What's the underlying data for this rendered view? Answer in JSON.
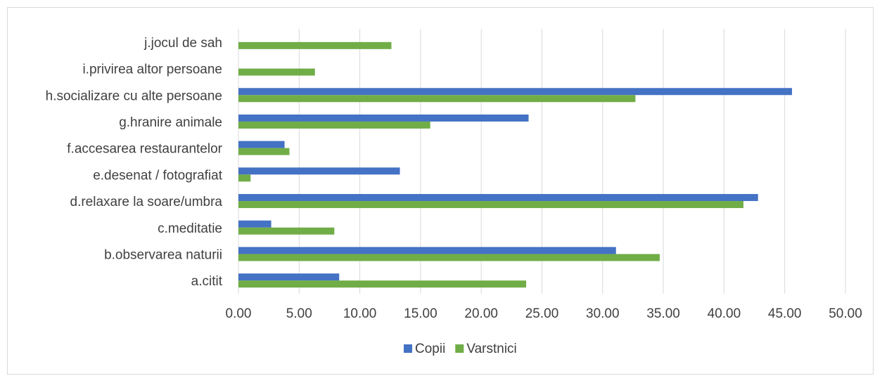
{
  "chart_data": {
    "type": "bar",
    "orientation": "horizontal",
    "categories": [
      "a.citit",
      "b.observarea naturii",
      "c.meditatie",
      "d.relaxare la soare/umbra",
      "e.desenat / fotografiat",
      "f.accesarea restaurantelor",
      "g.hranire animale",
      "h.socializare cu alte persoane",
      "i.privirea altor persoane",
      "j.jocul de sah"
    ],
    "series": [
      {
        "name": "Copii",
        "color": "#4472c4",
        "values": [
          8.3,
          31.1,
          2.7,
          42.8,
          13.3,
          3.8,
          23.9,
          45.6,
          0,
          0
        ]
      },
      {
        "name": "Varstnici",
        "color": "#70ad47",
        "values": [
          23.7,
          34.7,
          7.9,
          41.6,
          1.0,
          4.2,
          15.8,
          32.7,
          6.3,
          12.6
        ]
      }
    ],
    "xlim": [
      0,
      50
    ],
    "xticks": [
      "0.00",
      "5.00",
      "10.00",
      "15.00",
      "20.00",
      "25.00",
      "30.00",
      "35.00",
      "40.00",
      "45.00",
      "50.00"
    ],
    "grid": true,
    "legend": "bottom",
    "gridColor": "#d9d9d9"
  }
}
